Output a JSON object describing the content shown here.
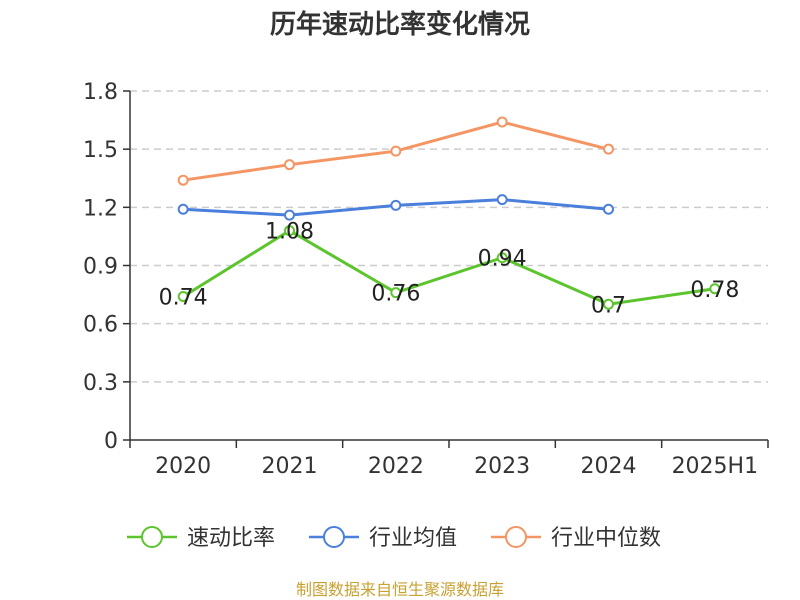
{
  "chart_data": {
    "type": "line",
    "title": "历年速动比率变化情况",
    "categories": [
      "2020",
      "2021",
      "2022",
      "2023",
      "2024",
      "2025H1"
    ],
    "series": [
      {
        "name": "速动比率",
        "color": "#5cc42d",
        "values": [
          0.74,
          1.08,
          0.76,
          0.94,
          0.7,
          0.78
        ],
        "labels": [
          "0.74",
          "1.08",
          "0.76",
          "0.94",
          "0.7",
          "0.78"
        ]
      },
      {
        "name": "行业均值",
        "color": "#4b7fdc",
        "values": [
          1.19,
          1.16,
          1.21,
          1.24,
          1.19,
          null
        ]
      },
      {
        "name": "行业中位数",
        "color": "#f59563",
        "values": [
          1.34,
          1.42,
          1.49,
          1.64,
          1.5,
          null
        ]
      }
    ],
    "ylim": [
      0,
      1.8
    ],
    "yticks": [
      "0",
      "0.3",
      "0.6",
      "0.9",
      "1.2",
      "1.5",
      "1.8"
    ],
    "grid": true,
    "legend": "bottom"
  },
  "source": "制图数据来自恒生聚源数据库"
}
